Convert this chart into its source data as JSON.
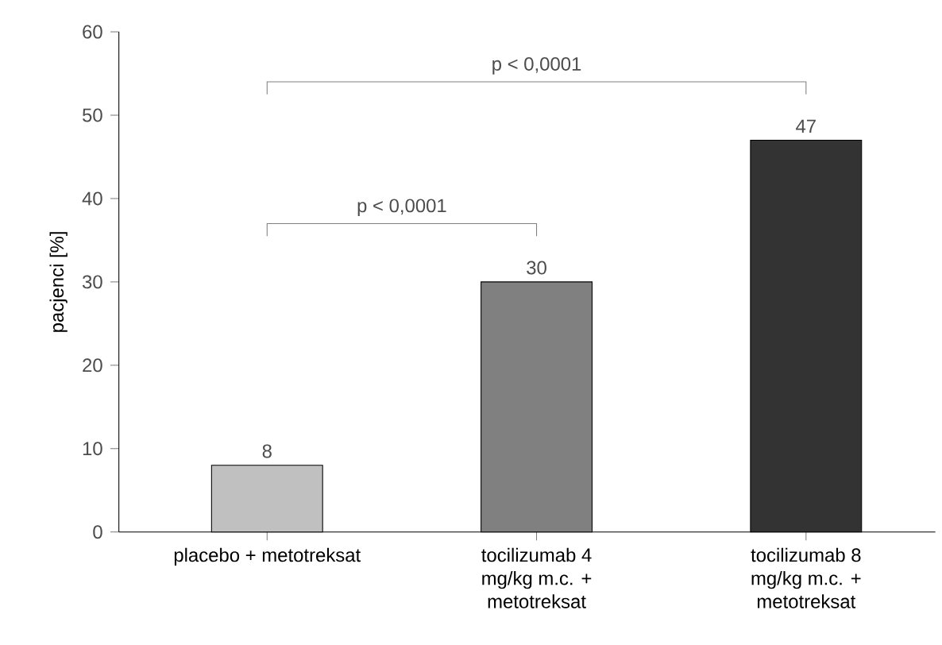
{
  "chart_data": {
    "type": "bar",
    "ylabel": "pacjenci [%]",
    "categories": [
      "placebo + metotreksat",
      "tocilizumab 4 mg/kg m.c. + metotreksat",
      "tocilizumab 8 mg/kg m.c. + metotreksat"
    ],
    "values": [
      8,
      30,
      47
    ],
    "colors": [
      "#c0c0c0",
      "#808080",
      "#333333"
    ],
    "ylim": [
      0,
      60
    ],
    "yticks": [
      0,
      10,
      20,
      30,
      40,
      50,
      60
    ],
    "data_labels": true,
    "annotations": [
      "p < 0,0001",
      "p < 0,0001"
    ]
  }
}
